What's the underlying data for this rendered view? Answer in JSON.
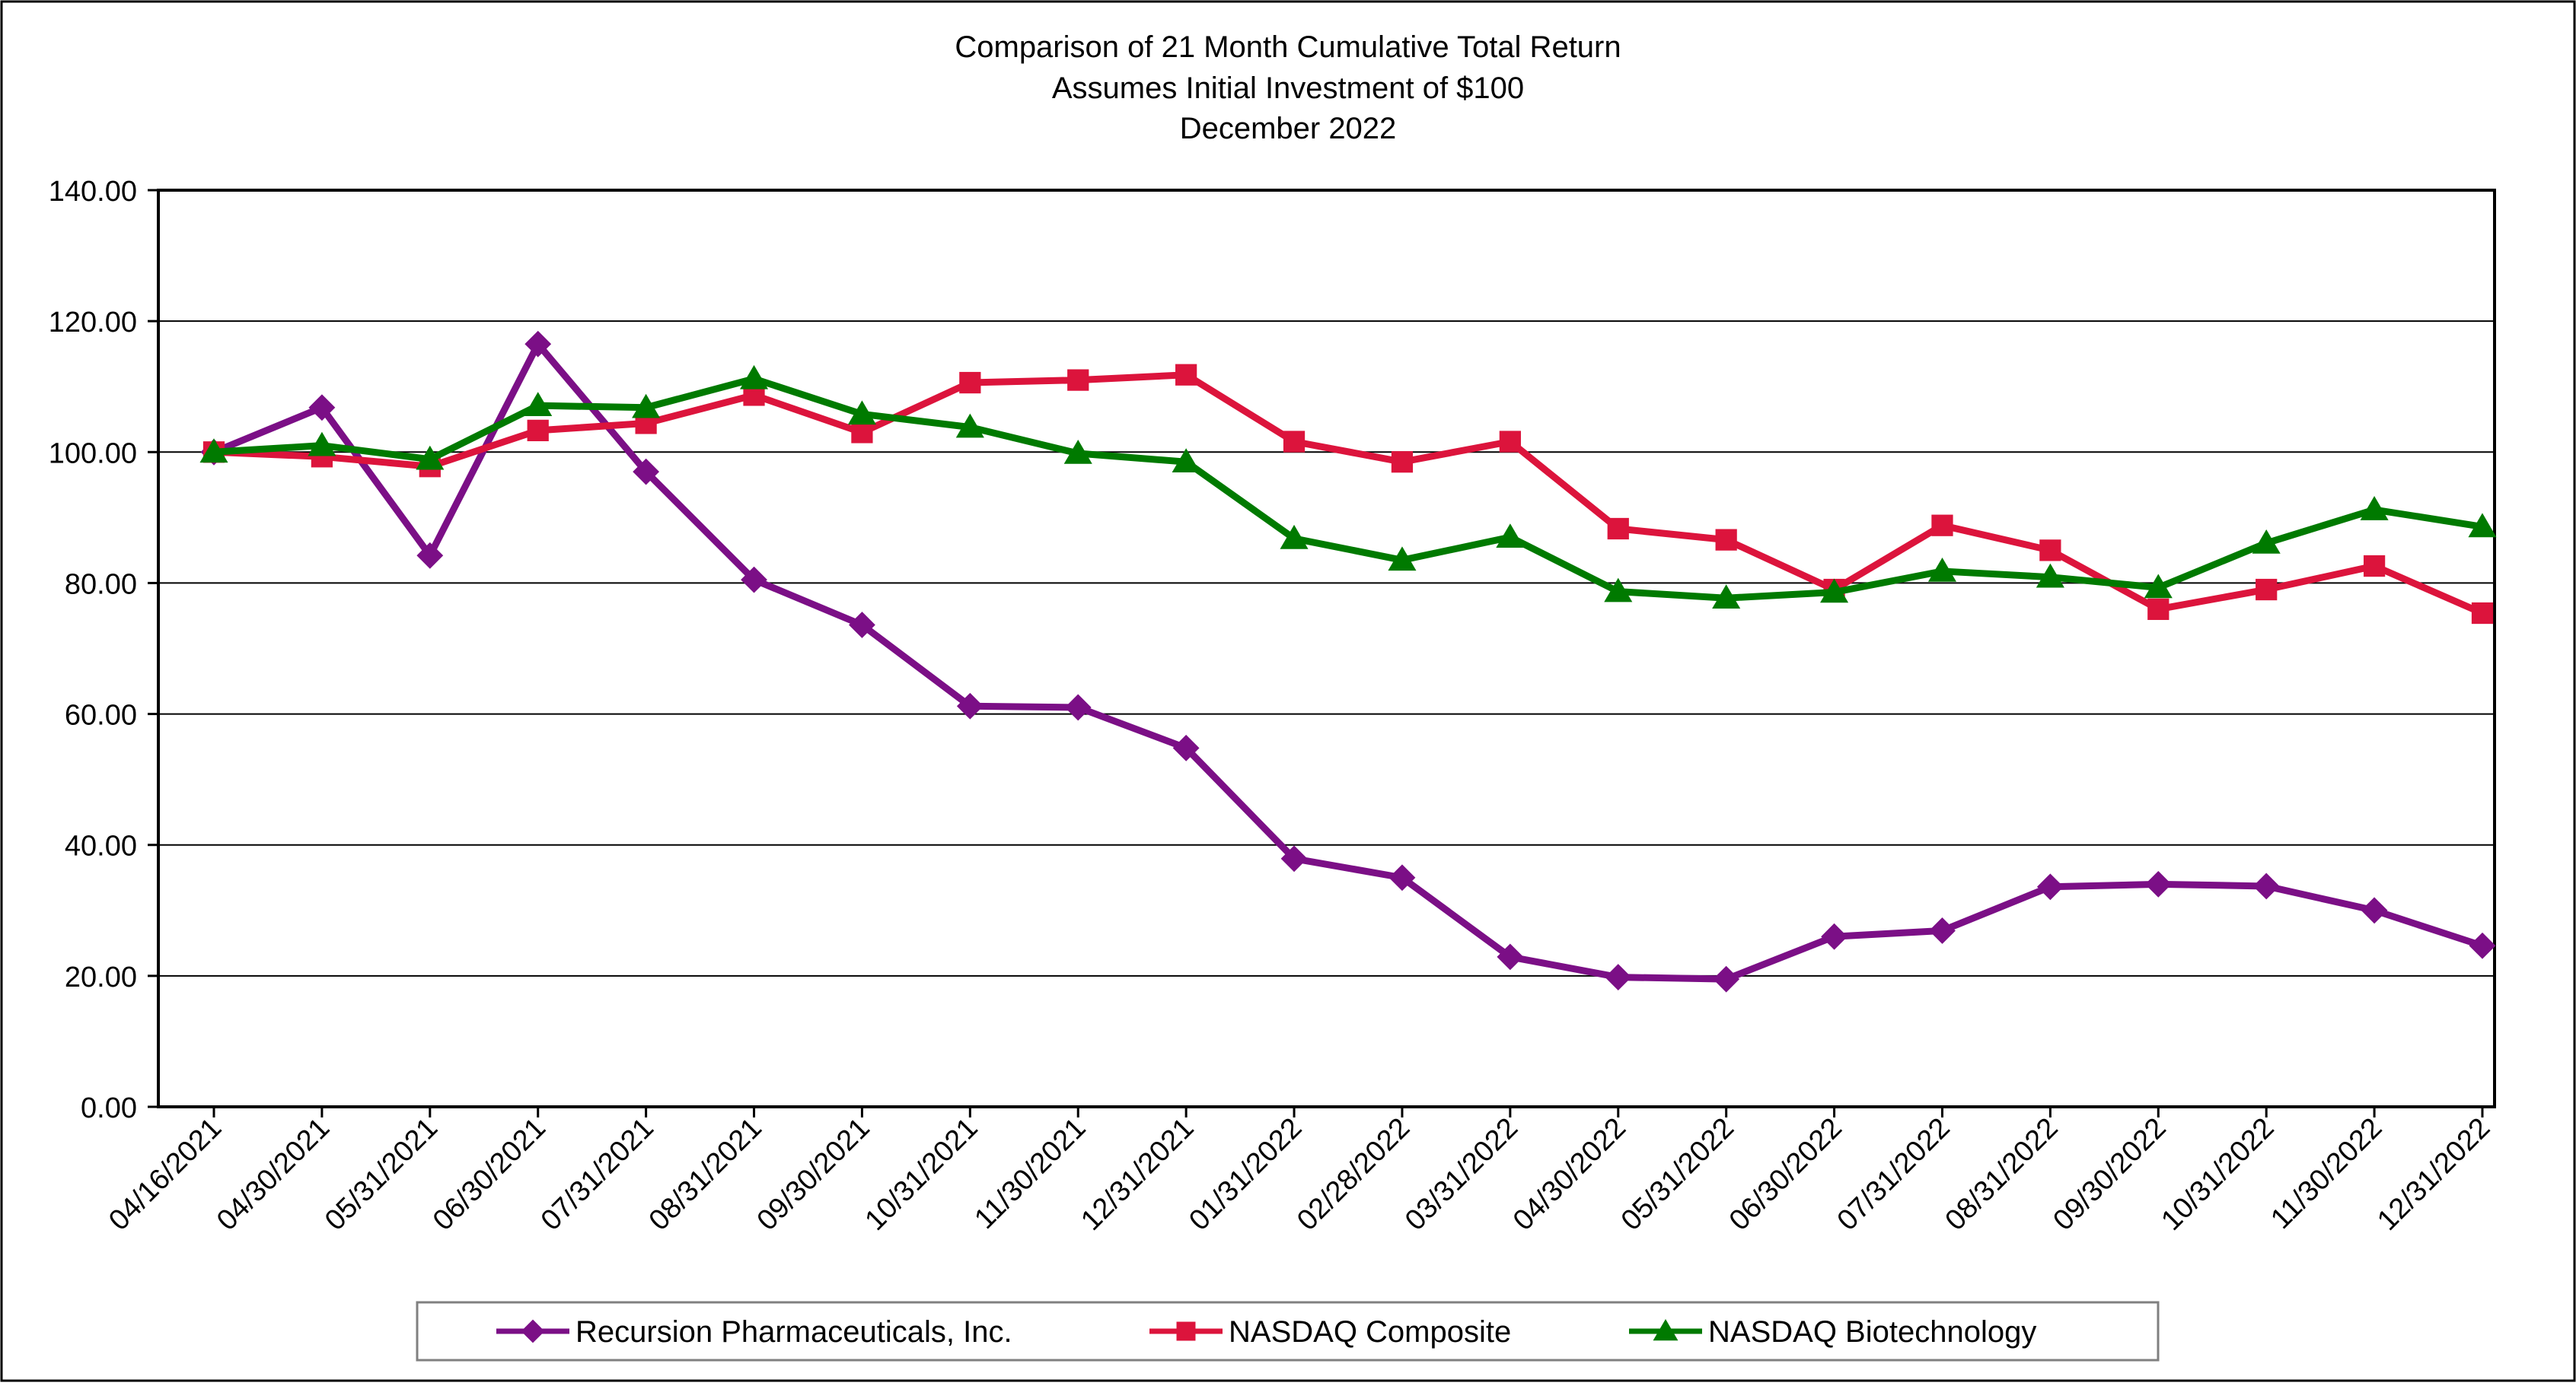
{
  "chart_data": {
    "type": "line",
    "title": "Comparison of 21 Month Cumulative Total Return",
    "subtitle_1": "Assumes Initial Investment of $100",
    "subtitle_2": "December 2022",
    "xlabel": "",
    "ylabel": "",
    "ylim": [
      0,
      140
    ],
    "y_ticks": [
      "0.00",
      "20.00",
      "40.00",
      "60.00",
      "80.00",
      "100.00",
      "120.00",
      "140.00"
    ],
    "grid": true,
    "legend_position": "bottom",
    "categories": [
      "04/16/2021",
      "04/30/2021",
      "05/31/2021",
      "06/30/2021",
      "07/31/2021",
      "08/31/2021",
      "09/30/2021",
      "10/31/2021",
      "11/30/2021",
      "12/31/2021",
      "01/31/2022",
      "02/28/2022",
      "03/31/2022",
      "04/30/2022",
      "05/31/2022",
      "06/30/2022",
      "07/31/2022",
      "08/31/2022",
      "09/30/2022",
      "10/31/2022",
      "11/30/2022",
      "12/31/2022"
    ],
    "series": [
      {
        "name": "Recursion Pharmaceuticals, Inc.",
        "color": "#7b0f86",
        "marker": "diamond",
        "values": [
          100.0,
          106.8,
          84.2,
          116.5,
          97.0,
          80.5,
          73.6,
          61.2,
          61.0,
          54.8,
          37.9,
          35.0,
          22.9,
          19.8,
          19.5,
          26.0,
          26.9,
          33.6,
          34.0,
          33.7,
          30.0,
          24.6
        ]
      },
      {
        "name": "NASDAQ Composite",
        "color": "#dc143c",
        "marker": "square",
        "values": [
          100.0,
          99.3,
          97.8,
          103.3,
          104.4,
          108.7,
          103.0,
          110.6,
          111.0,
          111.8,
          101.6,
          98.5,
          101.6,
          88.3,
          86.6,
          79.0,
          88.8,
          85.0,
          76.0,
          79.0,
          82.6,
          75.4
        ]
      },
      {
        "name": "NASDAQ Biotechnology",
        "color": "#007a00",
        "marker": "triangle",
        "values": [
          100.0,
          101.0,
          98.9,
          107.1,
          106.8,
          111.2,
          105.8,
          103.8,
          99.8,
          98.5,
          86.8,
          83.5,
          87.0,
          78.7,
          77.7,
          78.6,
          81.8,
          80.9,
          79.3,
          86.1,
          91.2,
          88.6
        ]
      }
    ]
  }
}
